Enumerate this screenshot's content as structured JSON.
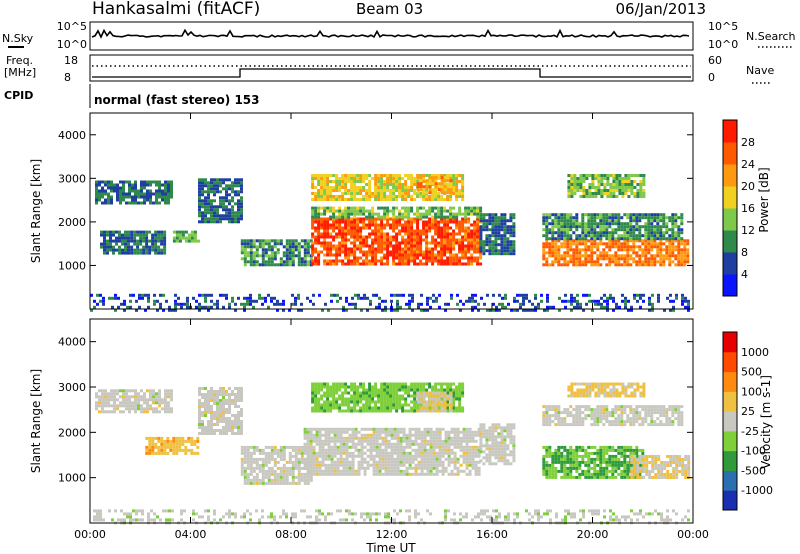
{
  "header": {
    "station": "Hankasalmi (fitACF)",
    "beam": "Beam 03",
    "date": "06/Jan/2013"
  },
  "top_panels": {
    "nsky_label": "N.Sky",
    "nsearch_label": "N.Search",
    "nsky_ticks": [
      "10^5",
      "10^0"
    ],
    "nsearch_ticks": [
      "10^5",
      "10^0"
    ],
    "freq_label_1": "Freq.",
    "freq_label_2": "[MHz]",
    "freq_ticks": [
      "18",
      "8"
    ],
    "nave_label": "Nave",
    "nave_ticks": [
      "60",
      "0"
    ],
    "cpid_label": "CPID",
    "cpid_text": "normal (fast stereo) 153"
  },
  "xaxis": {
    "label": "Time UT",
    "ticks": [
      "00:00",
      "04:00",
      "08:00",
      "12:00",
      "16:00",
      "20:00",
      "00:00"
    ]
  },
  "colors": {
    "power_scale": [
      "#0a14ff",
      "#1f3fa0",
      "#2e8a4a",
      "#7fc94a",
      "#f0d020",
      "#ff9a10",
      "#ff5a00",
      "#ff1a00"
    ],
    "velocity_scale": [
      "#1a2fb0",
      "#2a6fb0",
      "#2e9a3a",
      "#7fcf3a",
      "#c8c8c0",
      "#f0c040",
      "#ff8a10",
      "#ff4a00",
      "#e80000"
    ]
  },
  "chart_data": [
    {
      "type": "heatmap",
      "title": "",
      "xlabel": "",
      "ylabel": "Slant Range [km]",
      "xlim": [
        0,
        24
      ],
      "ylim": [
        0,
        4500
      ],
      "yticks": [
        "1000",
        "2000",
        "3000",
        "4000"
      ],
      "colorbar_label": "Power [dB]",
      "colorbar_ticks": [
        "28",
        "24",
        "20",
        "16",
        "12",
        "8",
        "4"
      ],
      "colorbar_range": [
        0,
        32
      ],
      "regions": [
        {
          "x0": 0.2,
          "x1": 3.3,
          "y0": 2450,
          "y1": 2950,
          "value": 8
        },
        {
          "x0": 0.4,
          "x1": 3.0,
          "y0": 1300,
          "y1": 1800,
          "value": 8
        },
        {
          "x0": 3.3,
          "x1": 4.3,
          "y0": 1550,
          "y1": 1800,
          "value": 12
        },
        {
          "x0": 4.3,
          "x1": 6.0,
          "y0": 2000,
          "y1": 3000,
          "value": 8
        },
        {
          "x0": 6.0,
          "x1": 8.8,
          "y0": 1000,
          "y1": 1600,
          "value": 10
        },
        {
          "x0": 8.8,
          "x1": 15.5,
          "y0": 1000,
          "y1": 2100,
          "value": 27
        },
        {
          "x0": 8.8,
          "x1": 15.5,
          "y0": 2100,
          "y1": 2350,
          "value": 13
        },
        {
          "x0": 8.8,
          "x1": 14.8,
          "y0": 2500,
          "y1": 3100,
          "value": 18
        },
        {
          "x0": 13.0,
          "x1": 14.4,
          "y0": 2650,
          "y1": 3050,
          "value": 22
        },
        {
          "x0": 15.5,
          "x1": 16.9,
          "y0": 1300,
          "y1": 2200,
          "value": 8
        },
        {
          "x0": 18.0,
          "x1": 23.8,
          "y0": 1000,
          "y1": 1600,
          "value": 24
        },
        {
          "x0": 18.0,
          "x1": 23.5,
          "y0": 1600,
          "y1": 2200,
          "value": 10
        },
        {
          "x0": 19.0,
          "x1": 22.0,
          "y0": 2600,
          "y1": 3100,
          "value": 14
        },
        {
          "x0": 0.0,
          "x1": 24.0,
          "y0": 0,
          "y1": 350,
          "value": 6
        }
      ]
    },
    {
      "type": "heatmap",
      "title": "",
      "xlabel": "Time UT",
      "ylabel": "Slant Range [km]",
      "xlim": [
        0,
        24
      ],
      "ylim": [
        0,
        4500
      ],
      "yticks": [
        "1000",
        "2000",
        "3000",
        "4000"
      ],
      "colorbar_label": "Velocity [m s-1]",
      "colorbar_ticks": [
        "1000",
        "500",
        "100",
        "25",
        "-25",
        "-100",
        "-500",
        "-1000"
      ],
      "colorbar_range": [
        -1200,
        1200
      ],
      "regions": [
        {
          "x0": 0.2,
          "x1": 3.3,
          "y0": 2450,
          "y1": 2950,
          "value": 0
        },
        {
          "x0": 2.2,
          "x1": 4.3,
          "y0": 1550,
          "y1": 1900,
          "value": 300
        },
        {
          "x0": 4.3,
          "x1": 6.0,
          "y0": 2000,
          "y1": 3000,
          "value": 0
        },
        {
          "x0": 6.0,
          "x1": 8.8,
          "y0": 900,
          "y1": 1700,
          "value": 0
        },
        {
          "x0": 8.5,
          "x1": 15.5,
          "y0": 1100,
          "y1": 2100,
          "value": 0
        },
        {
          "x0": 8.8,
          "x1": 14.8,
          "y0": 2500,
          "y1": 3100,
          "value": -300
        },
        {
          "x0": 13.0,
          "x1": 14.4,
          "y0": 2500,
          "y1": 2900,
          "value": 120
        },
        {
          "x0": 15.5,
          "x1": 16.9,
          "y0": 1300,
          "y1": 2200,
          "value": 0
        },
        {
          "x0": 18.0,
          "x1": 22.0,
          "y0": 1000,
          "y1": 1700,
          "value": -400
        },
        {
          "x0": 21.5,
          "x1": 23.8,
          "y0": 1000,
          "y1": 1500,
          "value": 100
        },
        {
          "x0": 18.0,
          "x1": 23.5,
          "y0": 2200,
          "y1": 2600,
          "value": 0
        },
        {
          "x0": 19.0,
          "x1": 22.0,
          "y0": 2800,
          "y1": 3100,
          "value": 200
        },
        {
          "x0": 0.0,
          "x1": 24.0,
          "y0": 0,
          "y1": 300,
          "value": -50
        }
      ]
    }
  ]
}
